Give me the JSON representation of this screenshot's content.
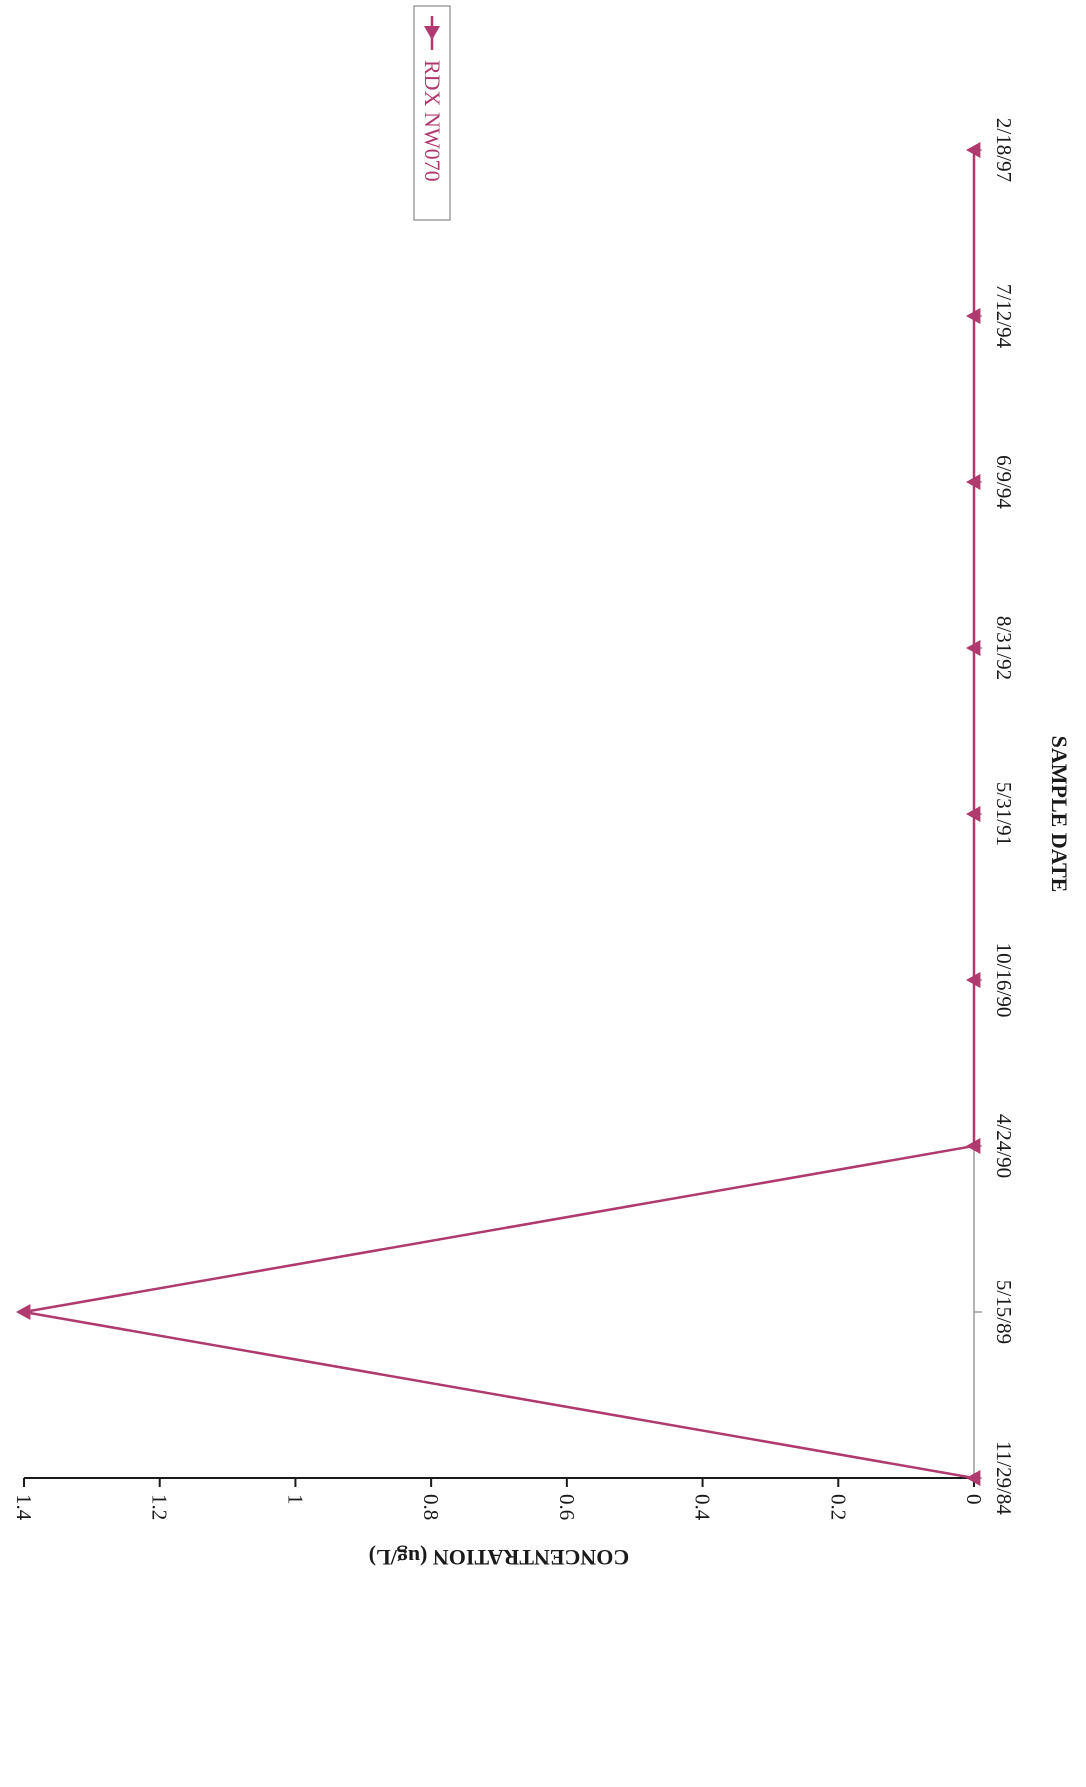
{
  "chart_data": {
    "type": "line",
    "title": "",
    "xlabel": "SAMPLE DATE",
    "ylabel": "CONCENTRATION (ug/L)",
    "categories": [
      "11/29/84",
      "5/15/89",
      "4/24/90",
      "10/16/90",
      "5/31/91",
      "8/31/92",
      "6/9/94",
      "7/12/94",
      "2/18/97"
    ],
    "series": [
      {
        "name": "RDX NW070",
        "values": [
          0,
          1.4,
          0,
          0,
          0,
          0,
          0,
          0,
          0
        ]
      }
    ],
    "y_ticks": [
      "0",
      "0.2",
      "0.4",
      "0.6",
      "0.8",
      "1",
      "1.2",
      "1.4"
    ],
    "ylim": [
      0,
      1.4
    ],
    "grid": false,
    "legend_position": "top-right",
    "orientation": "rotated-180",
    "colors": {
      "series": "#b03a6e",
      "axis": "#1a1a1a",
      "x_axis_line": "#9a9a9a"
    }
  }
}
